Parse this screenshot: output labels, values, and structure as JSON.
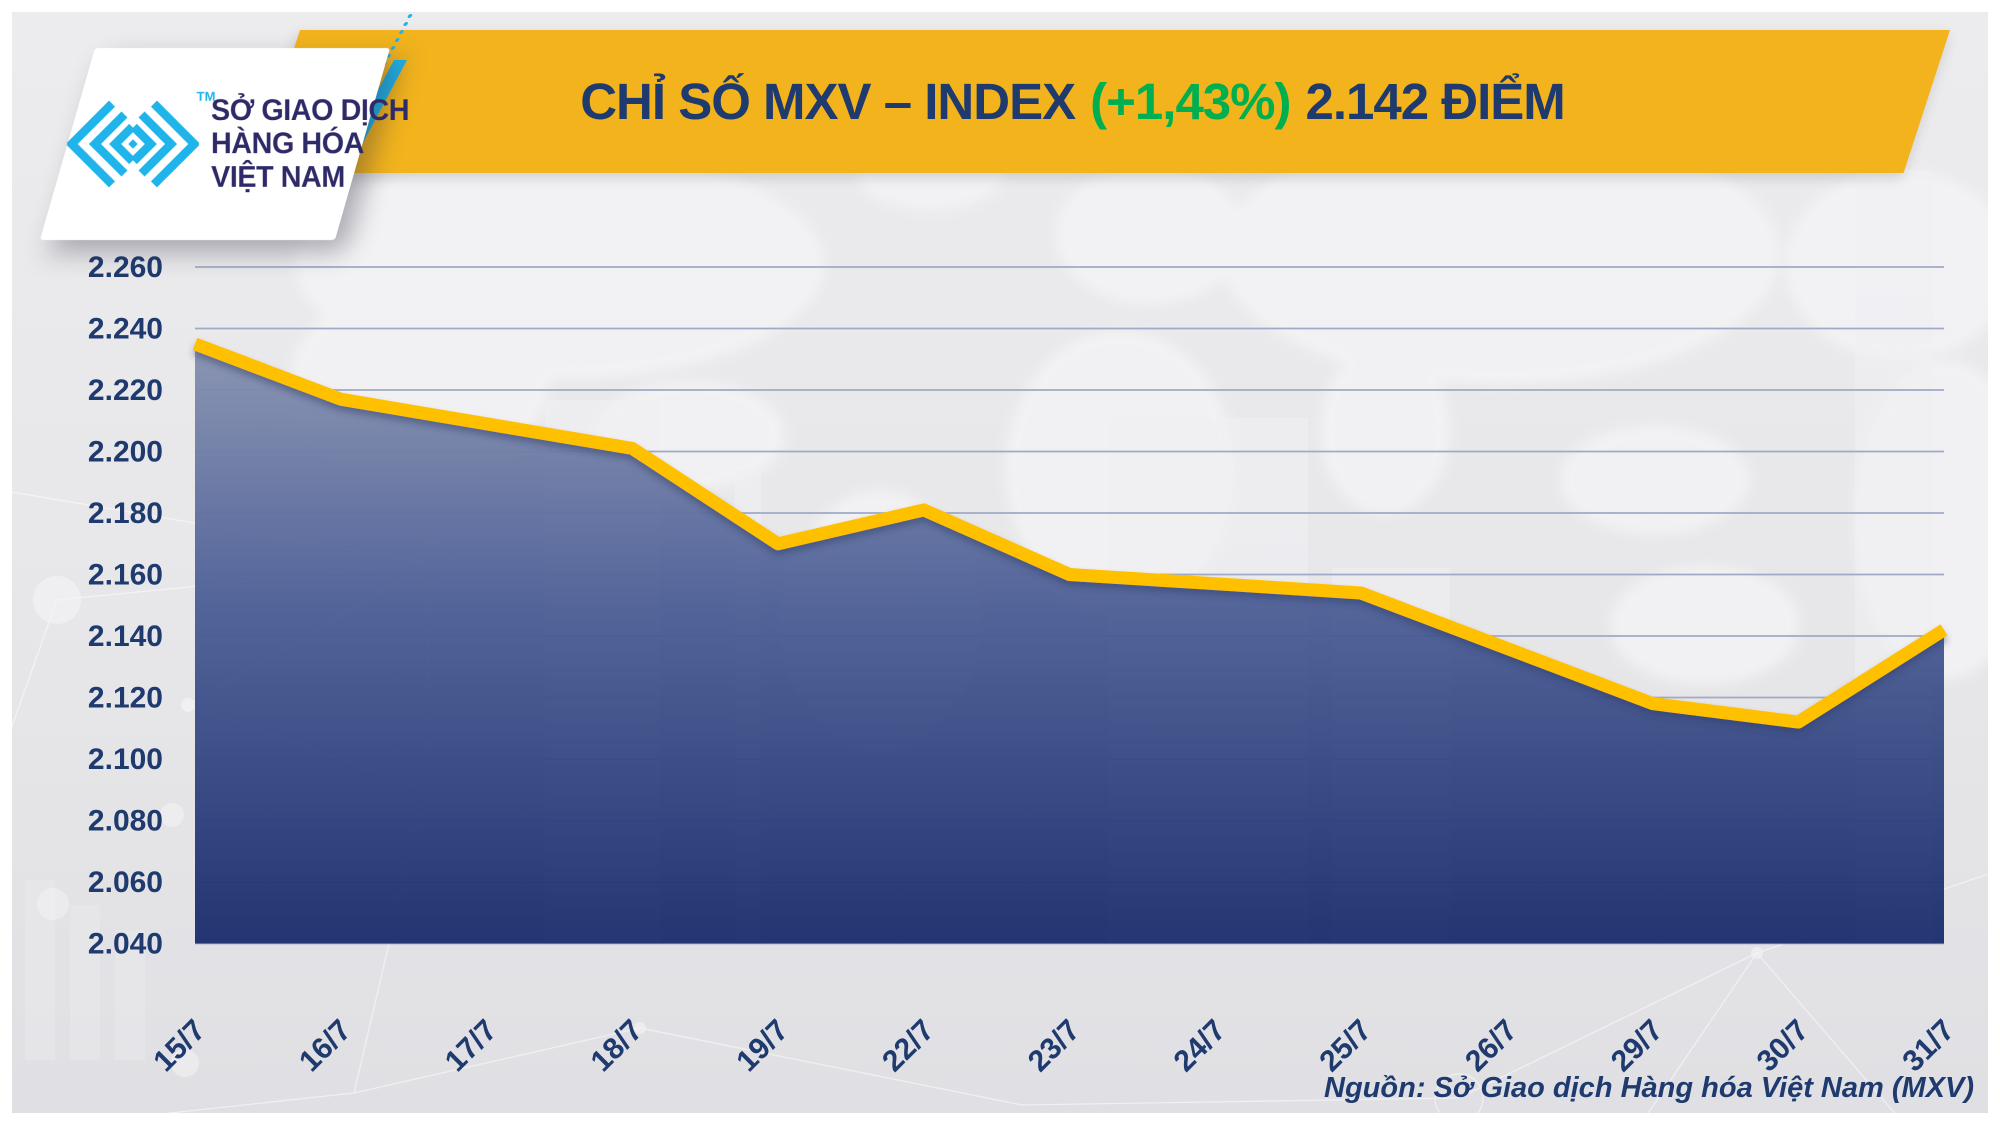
{
  "header": {
    "logo": {
      "org_line1": "SỞ GIAO DỊCH",
      "org_line2": "HÀNG HÓA",
      "org_line3": "VIỆT NAM",
      "trademark": "TM"
    },
    "title": {
      "index_label": "CHỈ SỐ MXV – INDEX",
      "change_percent": "(+1,43%)",
      "index_value": "2.142 ĐIỂM"
    }
  },
  "chart_data": {
    "type": "area",
    "title": "CHỈ SỐ MXV – INDEX (+1,43%) 2.142 ĐIỂM",
    "categories": [
      "15/7",
      "16/7",
      "17/7",
      "18/7",
      "19/7",
      "22/7",
      "23/7",
      "24/7",
      "25/7",
      "26/7",
      "29/7",
      "30/7",
      "31/7"
    ],
    "values": [
      2235,
      2217,
      2209,
      2201,
      2170,
      2181,
      2160,
      2157,
      2154,
      2136,
      2118,
      2112,
      2142
    ],
    "xlabel": "",
    "ylabel": "",
    "ylim": [
      2040,
      2260
    ],
    "grid": true,
    "legend": false,
    "y_axis": {
      "tick_values": [
        2260,
        2240,
        2220,
        2200,
        2180,
        2160,
        2140,
        2120,
        2100,
        2080,
        2060,
        2040
      ],
      "tick_labels": [
        "2.260",
        "2.240",
        "2.220",
        "2.200",
        "2.180",
        "2.160",
        "2.140",
        "2.120",
        "2.100",
        "2.080",
        "2.060",
        "2.040"
      ]
    },
    "styles": {
      "line_color": "#FFC005",
      "fill_gradient": [
        "#98A1B8",
        "#4D5F96",
        "#1B2E6D"
      ],
      "grid_color": "#9FAAC6"
    }
  },
  "footer": {
    "source": "Nguồn: Sở Giao dịch Hàng hóa Việt Nam (MXV)"
  },
  "theme": {
    "banner_yellow": "#F2B31C",
    "navy": "#1E3A6E",
    "green": "#00B050",
    "logo_cyan": "#1FB4EA",
    "logo_text": "#2E2A67",
    "background": "#E8E8EA"
  }
}
